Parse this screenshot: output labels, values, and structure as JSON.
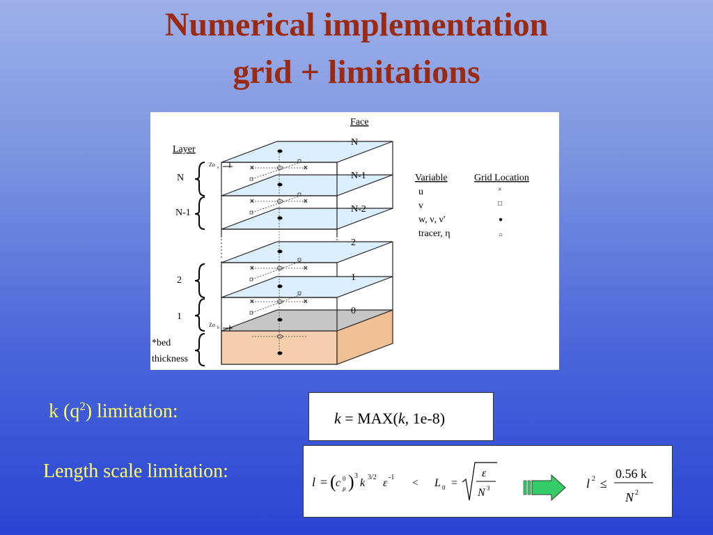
{
  "title": {
    "line1": "Numerical implementation",
    "line2": "grid + limitations"
  },
  "figure": {
    "face_header": "Face",
    "layer_header": "Layer",
    "face_labels": [
      "N",
      "N-1",
      "N-2",
      "2",
      "1",
      "0"
    ],
    "layer_labels": [
      "N",
      "N-1",
      "2",
      "1",
      "*bed",
      "thickness"
    ],
    "zos_label": "Zo",
    "zos_sub": "s",
    "zob_label": "Zo",
    "zob_sub": "b",
    "legend": {
      "header_variable": "Variable",
      "header_grid": "Grid Location",
      "rows": [
        {
          "variable": "u",
          "symbol": "×"
        },
        {
          "variable": "v",
          "symbol": "□"
        },
        {
          "variable": "w, ν, ν'",
          "symbol": "●"
        },
        {
          "variable": "tracer, η",
          "symbol": "○"
        }
      ]
    },
    "colors": {
      "water_layer": "#dbeefd",
      "bed_top": "#c6c6c6",
      "bed_layer": "#f5cfad"
    }
  },
  "k_limitation": {
    "label_prefix": "k (q",
    "label_sup": "2",
    "label_suffix": ") limitation:",
    "eq_k": "k",
    "eq_eq": " = MAX(",
    "eq_k2": "k",
    "eq_rest": ", 1e-8)"
  },
  "length_limitation": {
    "label": "Length scale limitation:",
    "eq_left": "l = (c",
    "eq_c_sup": "0",
    "eq_c_sub": "μ",
    "eq_pow3": "3",
    "eq_k": "k",
    "eq_k_pow": "3/2",
    "eq_eps": "ε",
    "eq_eps_pow": "-1",
    "eq_lt": "<",
    "eq_L0": "L",
    "eq_L0_sub": "0",
    "eq_equals": "=",
    "eq_sqrt_num": "ε",
    "eq_sqrt_den": "N",
    "eq_sqrt_den_pow": "3",
    "eq_rhs_l": "l",
    "eq_rhs_pow": "2",
    "eq_leq": "≤",
    "eq_rhs_num": "0.56 k",
    "eq_rhs_den": "N",
    "eq_rhs_den_pow": "2",
    "arrow_color": "#33cc66"
  }
}
